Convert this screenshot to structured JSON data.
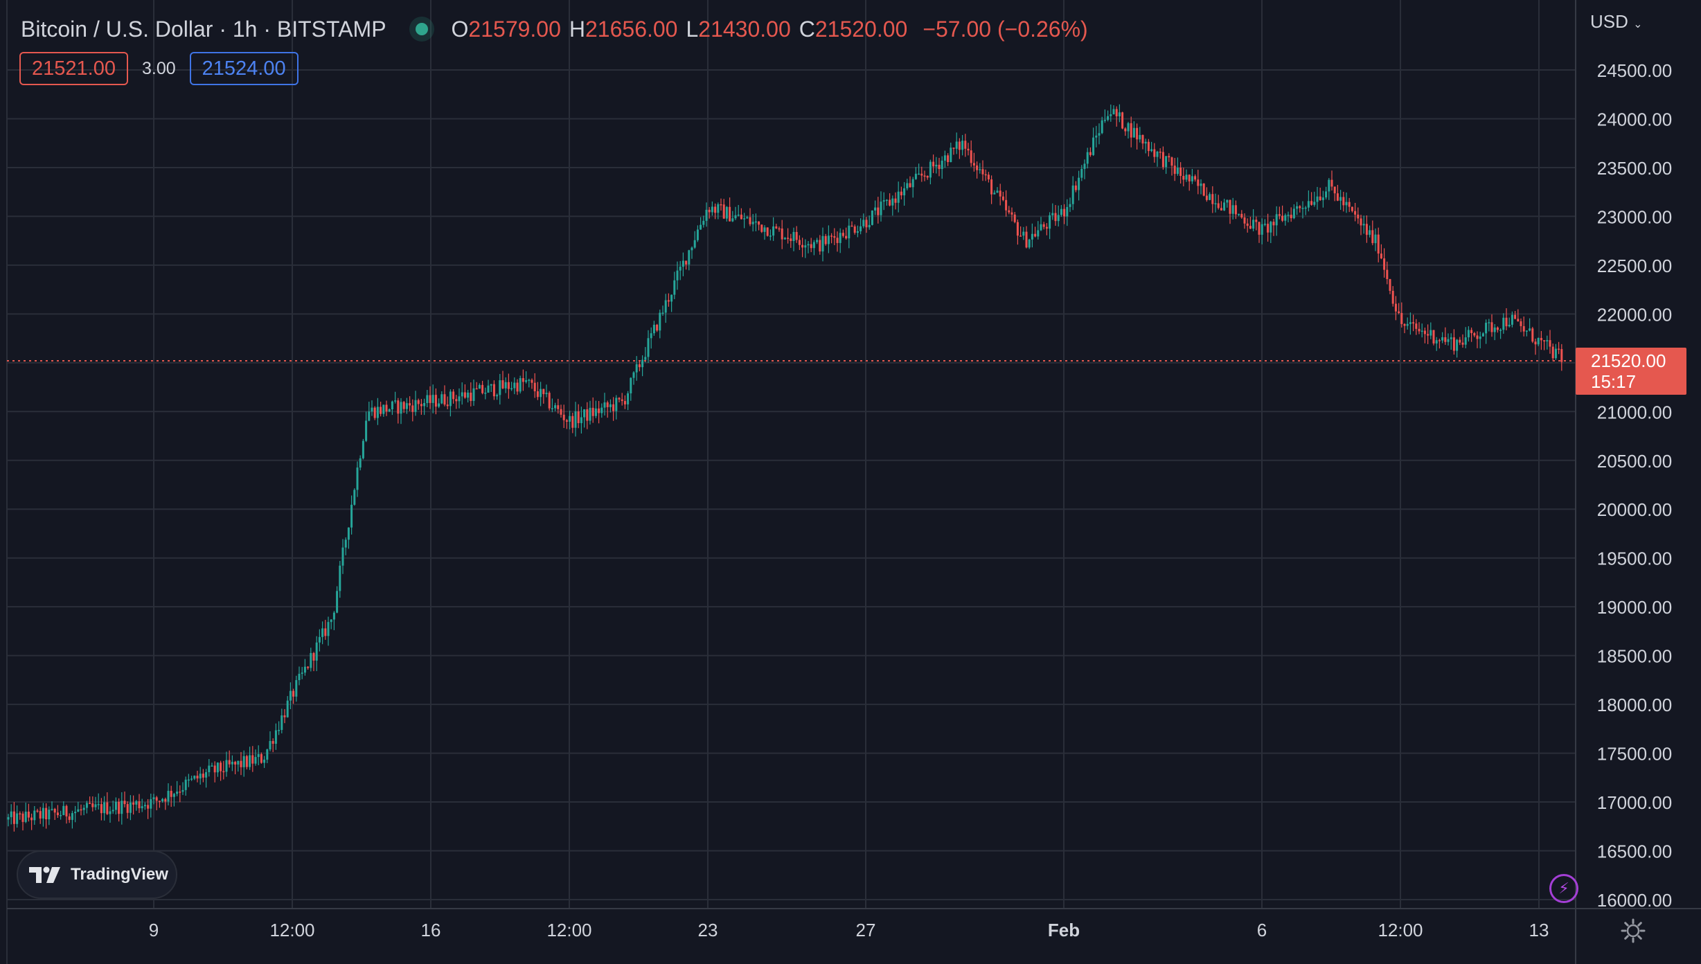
{
  "header": {
    "symbol": "Bitcoin / U.S. Dollar · 1h · BITSTAMP",
    "o_key": "O",
    "o_val": "21579.00",
    "h_key": "H",
    "h_val": "21656.00",
    "l_key": "L",
    "l_val": "21430.00",
    "c_key": "C",
    "c_val": "21520.00",
    "change": "−57.00 (−0.26%)"
  },
  "quotes": {
    "sell": "21521.00",
    "spread": "3.00",
    "buy": "21524.00"
  },
  "currency": "USD",
  "last_price": {
    "value": "21520.00",
    "countdown": "15:17"
  },
  "brand": "TradingView",
  "colors": {
    "up": "#26a69a",
    "down": "#ef5350",
    "background": "#141722",
    "grid": "#2a2e39",
    "price_label": "#e5584f"
  },
  "icons": {
    "status": "market-open-dot-icon",
    "lightning": "lightning-icon",
    "settings": "gear-icon",
    "dropdown": "chevron-down-icon"
  },
  "chart_data": {
    "type": "candlestick",
    "timeframe": "1h",
    "grid": true,
    "ylim": [
      16000,
      24500
    ],
    "y_ticks": [
      "24500.00",
      "24000.00",
      "23500.00",
      "23000.00",
      "22500.00",
      "22000.00",
      "21500.00",
      "21000.00",
      "20500.00",
      "20000.00",
      "19500.00",
      "19000.00",
      "18500.00",
      "18000.00",
      "17500.00",
      "17000.00",
      "16500.00",
      "16000.00"
    ],
    "x_ticks": [
      "9",
      "12:00",
      "16",
      "12:00",
      "23",
      "27",
      "Feb",
      "6",
      "12:00",
      "13"
    ],
    "last_value": 21520,
    "approx_close_path": [
      {
        "x": "start",
        "y": 16820
      },
      {
        "x": "9",
        "y": 17000
      },
      {
        "x": "between 9 and 12:00",
        "y": 17300
      },
      {
        "x": "before 12:00",
        "y": 17450
      },
      {
        "x": "12:00",
        "y": 18100
      },
      {
        "x": "after 12:00",
        "y": 18900
      },
      {
        "x": "before 16",
        "y": 21000
      },
      {
        "x": "16",
        "y": 21100
      },
      {
        "x": "before 12:00 (2)",
        "y": 21300
      },
      {
        "x": "12:00 (2)",
        "y": 20900
      },
      {
        "x": "after 12:00 (2)",
        "y": 21100
      },
      {
        "x": "before 23",
        "y": 23100
      },
      {
        "x": "23",
        "y": 22850
      },
      {
        "x": "between 23 and 27",
        "y": 22700
      },
      {
        "x": "27",
        "y": 22950
      },
      {
        "x": "between 27 and Feb",
        "y": 23750
      },
      {
        "x": "before Feb",
        "y": 22750
      },
      {
        "x": "Feb",
        "y": 23050
      },
      {
        "x": "after Feb",
        "y": 24100
      },
      {
        "x": "between Feb and 6",
        "y": 23450
      },
      {
        "x": "6",
        "y": 22850
      },
      {
        "x": "after 6",
        "y": 23300
      },
      {
        "x": "before 12:00 (3)",
        "y": 22700
      },
      {
        "x": "12:00 (3)",
        "y": 21900
      },
      {
        "x": "after 12:00 (3)",
        "y": 21700
      },
      {
        "x": "before 13",
        "y": 21950
      },
      {
        "x": "13",
        "y": 21520
      }
    ]
  }
}
